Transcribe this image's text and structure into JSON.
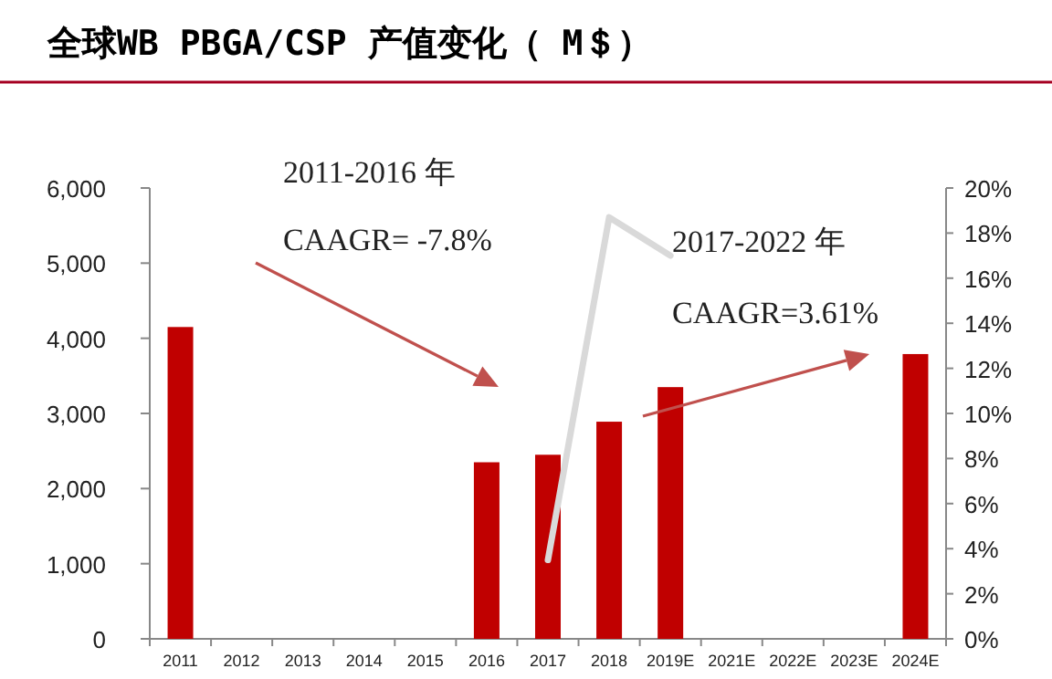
{
  "chart_data": {
    "type": "bar",
    "title": "全球WB PBGA/CSP 产值变化（ M＄）",
    "categories": [
      "2011",
      "2012",
      "2013",
      "2014",
      "2015",
      "2016",
      "2017",
      "2018",
      "2019E",
      "2021E",
      "2022E",
      "2023E",
      "2024E"
    ],
    "series": [
      {
        "color": "#c00000",
        "values": [
          4150,
          null,
          null,
          null,
          null,
          2350,
          2450,
          2890,
          3350,
          null,
          null,
          null,
          3790
        ]
      },
      {
        "type": "line",
        "axis": "y2",
        "color": "#d9d9d9",
        "values": [
          null,
          null,
          null,
          null,
          null,
          null,
          3.5,
          18.7,
          17,
          null,
          null,
          null,
          null
        ]
      }
    ],
    "ylim": [
      0,
      6000
    ],
    "yticks": [
      {
        "value": 0,
        "label": "0"
      },
      {
        "value": 1000,
        "label": "1,000"
      },
      {
        "value": 2000,
        "label": "2,000"
      },
      {
        "value": 3000,
        "label": "3,000"
      },
      {
        "value": 4000,
        "label": "4,000"
      },
      {
        "value": 5000,
        "label": "5,000"
      },
      {
        "value": 6000,
        "label": "6,000"
      }
    ],
    "y2lim": [
      0,
      20
    ],
    "y2ticks": [
      {
        "value": 0,
        "label": "0%"
      },
      {
        "value": 2,
        "label": "2%"
      },
      {
        "value": 4,
        "label": "4%"
      },
      {
        "value": 6,
        "label": "6%"
      },
      {
        "value": 8,
        "label": "8%"
      },
      {
        "value": 10,
        "label": "10%"
      },
      {
        "value": 12,
        "label": "12%"
      },
      {
        "value": 14,
        "label": "14%"
      },
      {
        "value": 16,
        "label": "16%"
      },
      {
        "value": 18,
        "label": "18%"
      },
      {
        "value": 20,
        "label": "20%"
      }
    ],
    "annotations": [
      "2011-2016 年",
      "CAAGR= -7.8%",
      "2017-2022 年",
      "CAAGR=3.61%"
    ],
    "grid": false
  }
}
